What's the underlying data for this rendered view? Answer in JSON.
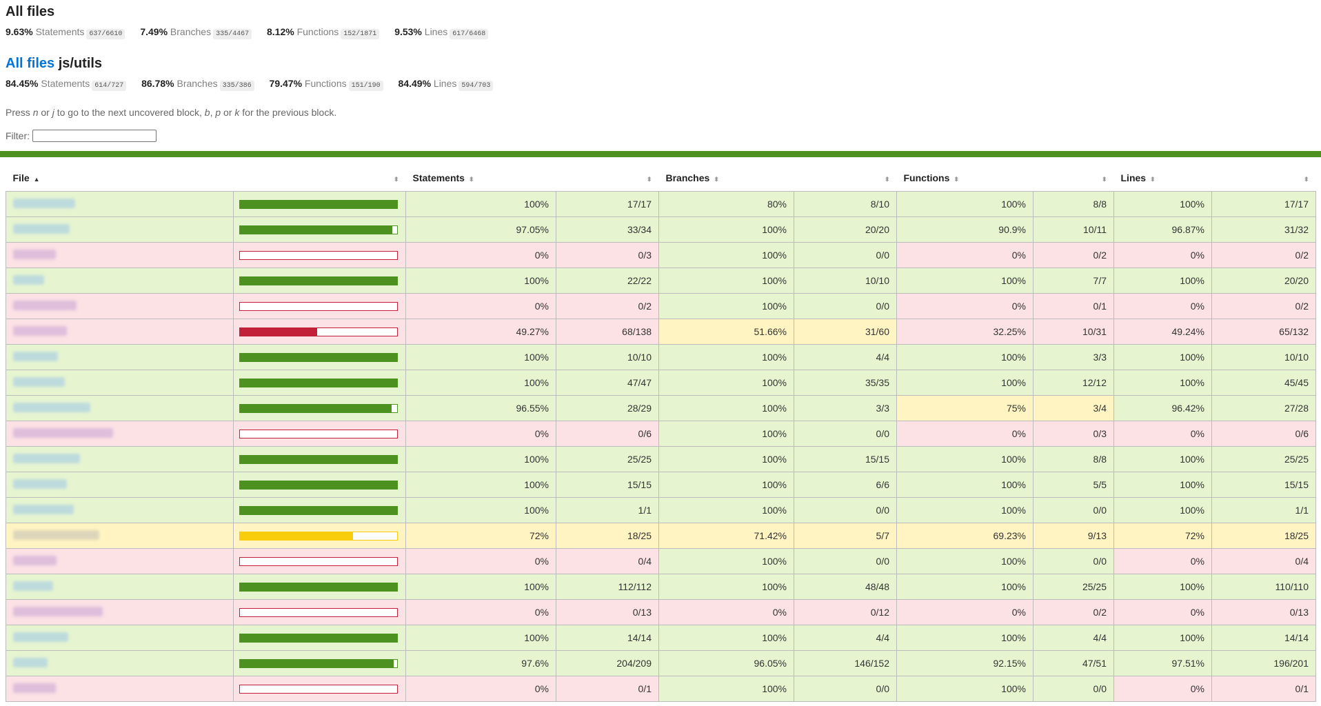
{
  "root": {
    "title": "All files",
    "summary": [
      {
        "pct": "9.63%",
        "label": "Statements",
        "fraction": "637/6610"
      },
      {
        "pct": "7.49%",
        "label": "Branches",
        "fraction": "335/4467"
      },
      {
        "pct": "8.12%",
        "label": "Functions",
        "fraction": "152/1871"
      },
      {
        "pct": "9.53%",
        "label": "Lines",
        "fraction": "617/6468"
      }
    ]
  },
  "current": {
    "breadcrumb_link": "All files",
    "dir": "js/utils",
    "summary": [
      {
        "pct": "84.45%",
        "label": "Statements",
        "fraction": "614/727"
      },
      {
        "pct": "86.78%",
        "label": "Branches",
        "fraction": "335/386"
      },
      {
        "pct": "79.47%",
        "label": "Functions",
        "fraction": "151/190"
      },
      {
        "pct": "84.49%",
        "label": "Lines",
        "fraction": "594/703"
      }
    ]
  },
  "hint": {
    "p1": "Press ",
    "k1": "n",
    "p2": " or ",
    "k2": "j",
    "p3": " to go to the next uncovered block, ",
    "k3": "b",
    "p4": ", ",
    "k4": "p",
    "p5": " or ",
    "k5": "k",
    "p6": " for the previous block."
  },
  "filter": {
    "label": "Filter:",
    "value": ""
  },
  "table": {
    "headers": {
      "file": "File",
      "statements": "Statements",
      "branches": "Branches",
      "functions": "Functions",
      "lines": "Lines"
    },
    "rows": [
      {
        "status": "high",
        "bar": 1.0,
        "s_pct": "100%",
        "s_frac": "17/17",
        "b_pct": "80%",
        "b_frac": "8/10",
        "b_cls": "high",
        "f_pct": "100%",
        "f_frac": "8/8",
        "f_cls": "high",
        "l_pct": "100%",
        "l_frac": "17/17"
      },
      {
        "status": "high",
        "bar": 0.9705,
        "s_pct": "97.05%",
        "s_frac": "33/34",
        "b_pct": "100%",
        "b_frac": "20/20",
        "b_cls": "high",
        "f_pct": "90.9%",
        "f_frac": "10/11",
        "f_cls": "high",
        "l_pct": "96.87%",
        "l_frac": "31/32"
      },
      {
        "status": "low",
        "bar": 0,
        "s_pct": "0%",
        "s_frac": "0/3",
        "b_pct": "100%",
        "b_frac": "0/0",
        "b_cls": "high",
        "f_pct": "0%",
        "f_frac": "0/2",
        "f_cls": "low",
        "l_pct": "0%",
        "l_frac": "0/2"
      },
      {
        "status": "high",
        "bar": 1.0,
        "s_pct": "100%",
        "s_frac": "22/22",
        "b_pct": "100%",
        "b_frac": "10/10",
        "b_cls": "high",
        "f_pct": "100%",
        "f_frac": "7/7",
        "f_cls": "high",
        "l_pct": "100%",
        "l_frac": "20/20"
      },
      {
        "status": "low",
        "bar": 0,
        "s_pct": "0%",
        "s_frac": "0/2",
        "b_pct": "100%",
        "b_frac": "0/0",
        "b_cls": "high",
        "f_pct": "0%",
        "f_frac": "0/1",
        "f_cls": "low",
        "l_pct": "0%",
        "l_frac": "0/2"
      },
      {
        "status": "low",
        "bar": 0.4927,
        "s_pct": "49.27%",
        "s_frac": "68/138",
        "b_pct": "51.66%",
        "b_frac": "31/60",
        "b_cls": "medium",
        "f_pct": "32.25%",
        "f_frac": "10/31",
        "f_cls": "low",
        "l_pct": "49.24%",
        "l_frac": "65/132"
      },
      {
        "status": "high",
        "bar": 1.0,
        "s_pct": "100%",
        "s_frac": "10/10",
        "b_pct": "100%",
        "b_frac": "4/4",
        "b_cls": "high",
        "f_pct": "100%",
        "f_frac": "3/3",
        "f_cls": "high",
        "l_pct": "100%",
        "l_frac": "10/10"
      },
      {
        "status": "high",
        "bar": 1.0,
        "s_pct": "100%",
        "s_frac": "47/47",
        "b_pct": "100%",
        "b_frac": "35/35",
        "b_cls": "high",
        "f_pct": "100%",
        "f_frac": "12/12",
        "f_cls": "high",
        "l_pct": "100%",
        "l_frac": "45/45"
      },
      {
        "status": "high",
        "bar": 0.9655,
        "s_pct": "96.55%",
        "s_frac": "28/29",
        "b_pct": "100%",
        "b_frac": "3/3",
        "b_cls": "high",
        "f_pct": "75%",
        "f_frac": "3/4",
        "f_cls": "medium",
        "l_pct": "96.42%",
        "l_frac": "27/28"
      },
      {
        "status": "low",
        "bar": 0,
        "s_pct": "0%",
        "s_frac": "0/6",
        "b_pct": "100%",
        "b_frac": "0/0",
        "b_cls": "high",
        "f_pct": "0%",
        "f_frac": "0/3",
        "f_cls": "low",
        "l_pct": "0%",
        "l_frac": "0/6"
      },
      {
        "status": "high",
        "bar": 1.0,
        "s_pct": "100%",
        "s_frac": "25/25",
        "b_pct": "100%",
        "b_frac": "15/15",
        "b_cls": "high",
        "f_pct": "100%",
        "f_frac": "8/8",
        "f_cls": "high",
        "l_pct": "100%",
        "l_frac": "25/25"
      },
      {
        "status": "high",
        "bar": 1.0,
        "s_pct": "100%",
        "s_frac": "15/15",
        "b_pct": "100%",
        "b_frac": "6/6",
        "b_cls": "high",
        "f_pct": "100%",
        "f_frac": "5/5",
        "f_cls": "high",
        "l_pct": "100%",
        "l_frac": "15/15"
      },
      {
        "status": "high",
        "bar": 1.0,
        "s_pct": "100%",
        "s_frac": "1/1",
        "b_pct": "100%",
        "b_frac": "0/0",
        "b_cls": "high",
        "f_pct": "100%",
        "f_frac": "0/0",
        "f_cls": "high",
        "l_pct": "100%",
        "l_frac": "1/1"
      },
      {
        "status": "medium",
        "bar": 0.72,
        "s_pct": "72%",
        "s_frac": "18/25",
        "b_pct": "71.42%",
        "b_frac": "5/7",
        "b_cls": "medium",
        "f_pct": "69.23%",
        "f_frac": "9/13",
        "f_cls": "medium",
        "l_pct": "72%",
        "l_frac": "18/25"
      },
      {
        "status": "low",
        "bar": 0,
        "s_pct": "0%",
        "s_frac": "0/4",
        "b_pct": "100%",
        "b_frac": "0/0",
        "b_cls": "high",
        "f_pct": "100%",
        "f_frac": "0/0",
        "f_cls": "high",
        "l_pct": "0%",
        "l_frac": "0/4"
      },
      {
        "status": "high",
        "bar": 1.0,
        "s_pct": "100%",
        "s_frac": "112/112",
        "b_pct": "100%",
        "b_frac": "48/48",
        "b_cls": "high",
        "f_pct": "100%",
        "f_frac": "25/25",
        "f_cls": "high",
        "l_pct": "100%",
        "l_frac": "110/110"
      },
      {
        "status": "low",
        "bar": 0,
        "s_pct": "0%",
        "s_frac": "0/13",
        "b_pct": "0%",
        "b_frac": "0/12",
        "b_cls": "low",
        "f_pct": "0%",
        "f_frac": "0/2",
        "f_cls": "low",
        "l_pct": "0%",
        "l_frac": "0/13"
      },
      {
        "status": "high",
        "bar": 1.0,
        "s_pct": "100%",
        "s_frac": "14/14",
        "b_pct": "100%",
        "b_frac": "4/4",
        "b_cls": "high",
        "f_pct": "100%",
        "f_frac": "4/4",
        "f_cls": "high",
        "l_pct": "100%",
        "l_frac": "14/14"
      },
      {
        "status": "high",
        "bar": 0.976,
        "s_pct": "97.6%",
        "s_frac": "204/209",
        "b_pct": "96.05%",
        "b_frac": "146/152",
        "b_cls": "high",
        "f_pct": "92.15%",
        "f_frac": "47/51",
        "f_cls": "high",
        "l_pct": "97.51%",
        "l_frac": "196/201"
      },
      {
        "status": "low",
        "bar": 0,
        "s_pct": "0%",
        "s_frac": "0/1",
        "b_pct": "100%",
        "b_frac": "0/0",
        "b_cls": "high",
        "f_pct": "100%",
        "f_frac": "0/0",
        "f_cls": "high",
        "l_pct": "0%",
        "l_frac": "0/1"
      }
    ]
  },
  "colors": {
    "high": "#4d9221",
    "low": "#c21f39",
    "medium": "#f9cd0b",
    "link": "#0074d9"
  }
}
